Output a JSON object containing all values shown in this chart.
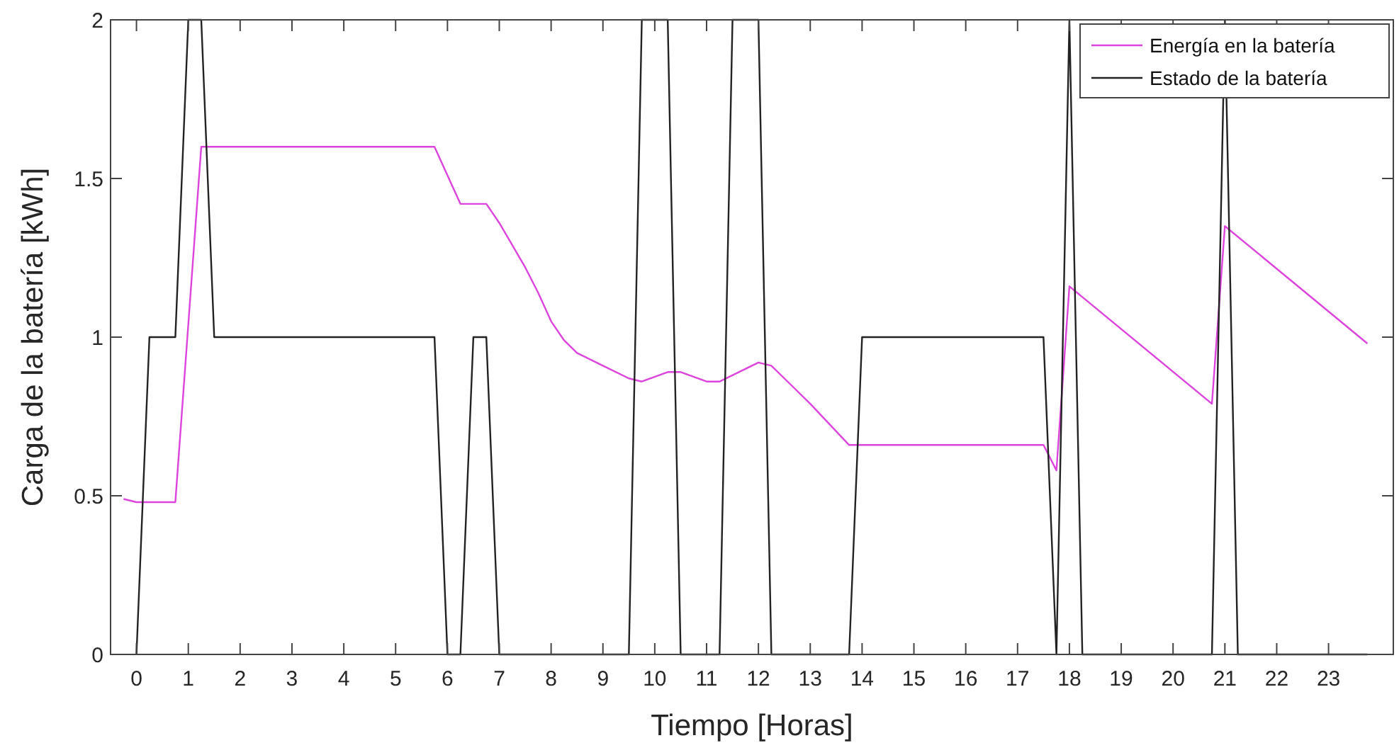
{
  "chart_data": {
    "type": "line",
    "xlabel": "Tiempo [Horas]",
    "ylabel": "Carga de la batería [kWh]",
    "xlim": [
      -0.5,
      24.25
    ],
    "xticks": [
      0,
      1,
      2,
      3,
      4,
      5,
      6,
      7,
      8,
      9,
      10,
      11,
      12,
      13,
      14,
      15,
      16,
      17,
      18,
      19,
      20,
      21,
      22,
      23
    ],
    "ylim": [
      0,
      2
    ],
    "yticks": [
      0,
      0.5,
      1,
      1.5,
      2
    ],
    "grid": false,
    "legend": "top right",
    "marker": "none",
    "line_style": "solid",
    "series": [
      {
        "name": "Energía en la batería",
        "color": "#dd44dd",
        "x": [
          -0.25,
          0,
          0.75,
          1.25,
          5.75,
          6.25,
          6.75,
          7,
          7.5,
          7.75,
          8,
          8.25,
          8.5,
          9,
          9.5,
          9.75,
          10.25,
          10.5,
          11,
          11.25,
          12,
          12.25,
          12.5,
          13,
          13.75,
          17.5,
          17.75,
          18,
          20.75,
          21,
          23.75
        ],
        "values": [
          0.49,
          0.48,
          0.48,
          1.6,
          1.6,
          1.42,
          1.42,
          1.36,
          1.22,
          1.14,
          1.05,
          0.99,
          0.95,
          0.91,
          0.87,
          0.86,
          0.89,
          0.89,
          0.86,
          0.86,
          0.92,
          0.91,
          0.87,
          0.79,
          0.66,
          0.66,
          0.58,
          1.16,
          0.79,
          1.35,
          0.98
        ]
      },
      {
        "name": "Estado de la batería",
        "color": "#222222",
        "x": [
          0,
          0.25,
          0.75,
          1,
          1.25,
          1.5,
          5.75,
          6,
          6.25,
          6.5,
          6.75,
          7,
          9.5,
          9.75,
          10.25,
          10.5,
          11.25,
          11.5,
          12,
          12.25,
          13.75,
          14,
          17.5,
          17.75,
          18,
          18.25,
          20.75,
          21,
          21.25,
          23.75
        ],
        "values": [
          0,
          1,
          1,
          2,
          2,
          1,
          1,
          0,
          0,
          1,
          1,
          0,
          0,
          2,
          2,
          0,
          0,
          2,
          2,
          0,
          0,
          1,
          1,
          0,
          2,
          0,
          0,
          2,
          0,
          0
        ]
      }
    ]
  }
}
